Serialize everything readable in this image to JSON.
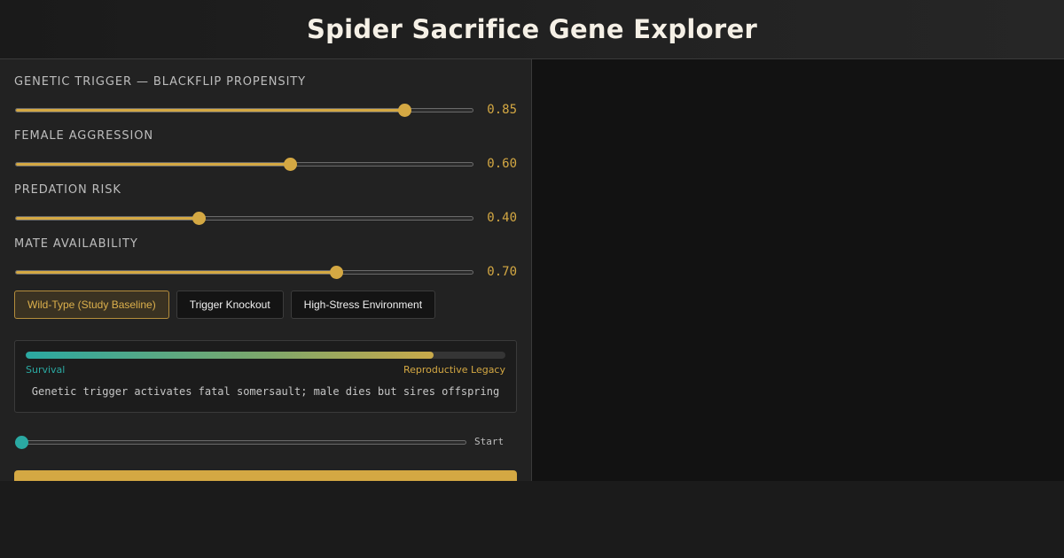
{
  "header": {
    "title": "Spider Sacrifice Gene Explorer"
  },
  "sliders": [
    {
      "label": "Genetic Trigger — Blackflip Propensity",
      "value": 0.85,
      "display": "0.85"
    },
    {
      "label": "Female Aggression",
      "value": 0.6,
      "display": "0.60"
    },
    {
      "label": "Predation Risk",
      "value": 0.4,
      "display": "0.40"
    },
    {
      "label": "Mate Availability",
      "value": 0.7,
      "display": "0.70"
    }
  ],
  "presets": [
    {
      "label": "Wild-Type (Study Baseline)",
      "active": true
    },
    {
      "label": "Trigger Knockout",
      "active": false
    },
    {
      "label": "High-Stress Environment",
      "active": false
    }
  ],
  "outcome": {
    "fraction": 0.85,
    "left_label": "Survival",
    "right_label": "Reproductive Legacy",
    "description": "Genetic trigger activates fatal somersault; male dies but sires offspring"
  },
  "timeline": {
    "value": 0,
    "label": "Start"
  },
  "colors": {
    "accent": "#d4a843",
    "teal": "#2aa9a2",
    "panel": "#222222",
    "viewport": "#121212"
  }
}
